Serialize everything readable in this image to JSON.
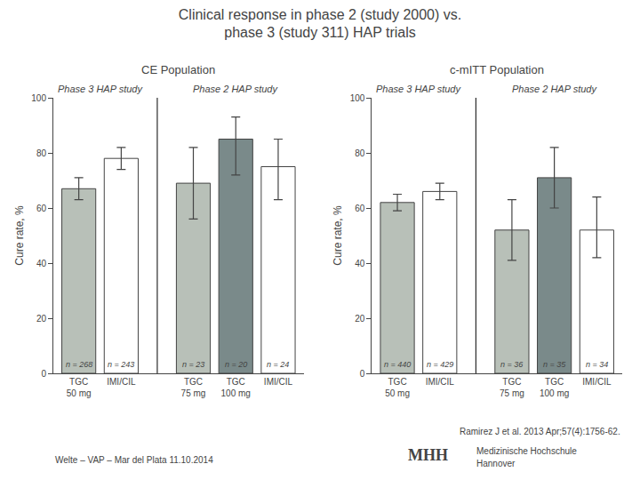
{
  "title": "Clinical response in phase 2 (study 2000) vs.\nphase 3 (study 311) HAP trials",
  "annotations": [
    "Ramirez J et al. 2013 Apr;57(4):1756-62.",
    "Welte – VAP – Mar del Plata 11.10.2014",
    "MHH",
    "Medizinische Hochschule",
    "Hannover"
  ],
  "chart_data": [
    {
      "type": "bar",
      "title": "CE Population",
      "ylabel": "Cure rate, %",
      "categories": [
        "TGC\n50 mg",
        "IMI/CIL",
        "TGC\n75 mg",
        "TGC\n100 mg",
        "IMI/CIL"
      ],
      "groups": [
        "Phase 3 HAP study",
        "Phase 3 HAP study",
        "Phase 2 HAP study",
        "Phase 2 HAP study",
        "Phase 2 HAP study"
      ],
      "values": [
        67,
        78,
        69,
        85,
        75
      ],
      "error_low": [
        4,
        4,
        13,
        13,
        12
      ],
      "error_high": [
        4,
        4,
        13,
        8,
        10
      ],
      "annotations": [
        "n = 268",
        "n = 243",
        "n = 23",
        "n = 20",
        "n = 24"
      ],
      "colors": [
        "#b8c0b8",
        "#ffffff",
        "#b8c0b8",
        "#7a8a8a",
        "#ffffff"
      ],
      "ylim": [
        0,
        100
      ],
      "yticks": [
        0,
        20,
        40,
        60,
        80,
        100
      ],
      "grid": false
    },
    {
      "type": "bar",
      "title": "c-mITT Population",
      "ylabel": "Cure rate, %",
      "categories": [
        "TGC\n50 mg",
        "IMI/CIL",
        "TGC\n75 mg",
        "TGC\n100 mg",
        "IMI/CIL"
      ],
      "groups": [
        "Phase 3 HAP study",
        "Phase 3 HAP study",
        "Phase 2 HAP study",
        "Phase 2 HAP study",
        "Phase 2 HAP study"
      ],
      "values": [
        62,
        66,
        52,
        71,
        52
      ],
      "error_low": [
        3,
        3,
        11,
        11,
        10
      ],
      "error_high": [
        3,
        3,
        11,
        11,
        12
      ],
      "annotations": [
        "n = 440",
        "n = 429",
        "n = 36",
        "n = 35",
        "n = 34"
      ],
      "colors": [
        "#b8c0b8",
        "#ffffff",
        "#b8c0b8",
        "#7a8a8a",
        "#ffffff"
      ],
      "ylim": [
        0,
        100
      ],
      "yticks": [
        0,
        20,
        40,
        60,
        80,
        100
      ],
      "grid": false
    }
  ]
}
